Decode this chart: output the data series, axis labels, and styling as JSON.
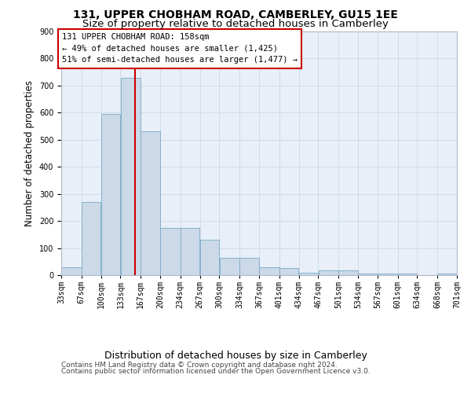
{
  "title1": "131, UPPER CHOBHAM ROAD, CAMBERLEY, GU15 1EE",
  "title2": "Size of property relative to detached houses in Camberley",
  "xlabel": "Distribution of detached houses by size in Camberley",
  "ylabel": "Number of detached properties",
  "footnote1": "Contains HM Land Registry data © Crown copyright and database right 2024.",
  "footnote2": "Contains public sector information licensed under the Open Government Licence v3.0.",
  "annotation_line1": "131 UPPER CHOBHAM ROAD: 158sqm",
  "annotation_line2": "← 49% of detached houses are smaller (1,425)",
  "annotation_line3": "51% of semi-detached houses are larger (1,477) →",
  "bar_color": "#ccd9e8",
  "bar_edge_color": "#7aaac8",
  "property_line_x": 158,
  "bin_edges": [
    33,
    67,
    100,
    133,
    167,
    200,
    234,
    267,
    300,
    334,
    367,
    401,
    434,
    467,
    501,
    534,
    567,
    601,
    634,
    668,
    701
  ],
  "bar_heights": [
    30,
    270,
    595,
    730,
    530,
    175,
    175,
    130,
    65,
    65,
    30,
    25,
    10,
    18,
    18,
    5,
    5,
    5,
    0,
    5
  ],
  "ylim": [
    0,
    900
  ],
  "yticks": [
    0,
    100,
    200,
    300,
    400,
    500,
    600,
    700,
    800,
    900
  ],
  "grid_color": "#d0dce8",
  "axes_bg_color": "#e8eff8",
  "annotation_box_color": "#ffffff",
  "annotation_box_edge": "#cc0000",
  "property_line_color": "#cc0000",
  "title_fontsize": 10,
  "subtitle_fontsize": 9.5,
  "ylabel_fontsize": 8.5,
  "xlabel_fontsize": 9,
  "tick_fontsize": 7,
  "footnote_fontsize": 6.5,
  "annotation_fontsize": 7.5
}
